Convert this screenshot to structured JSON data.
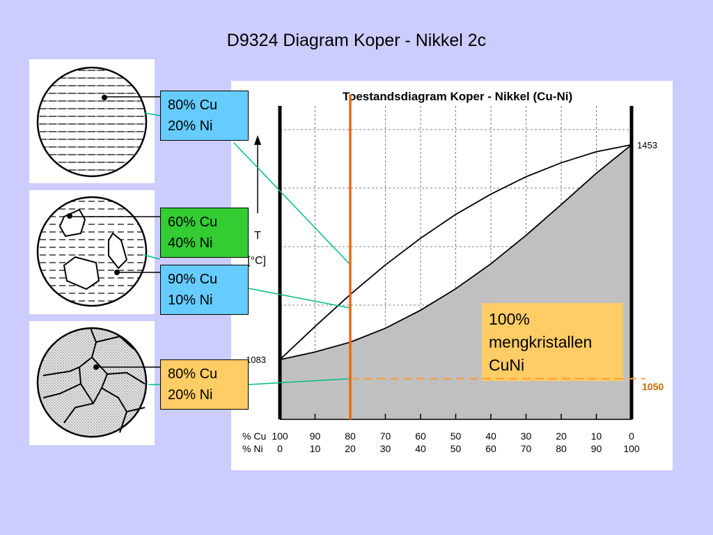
{
  "slide": {
    "title": "D9324 Diagram Koper  - Nikkel 2c"
  },
  "chart_data": {
    "type": "phase-diagram",
    "title": "Toestandsdiagram Koper - Nikkel (Cu-Ni)",
    "ylabel_symbol": "T",
    "ylabel_unit": "[°C]",
    "x_row_labels": [
      "% Cu",
      "% Ni"
    ],
    "cu_ticks": [
      "100",
      "90",
      "80",
      "70",
      "60",
      "50",
      "40",
      "30",
      "20",
      "10",
      "0"
    ],
    "ni_ticks": [
      "0",
      "10",
      "20",
      "30",
      "40",
      "50",
      "60",
      "70",
      "80",
      "90",
      "100"
    ],
    "ylim": [
      980,
      1520
    ],
    "melting_point_cu": 1083,
    "melting_point_ni": 1453,
    "melting_point_cu_label": "1083",
    "melting_point_ni_label": "1453",
    "liquidus": [
      [
        0,
        1083
      ],
      [
        10,
        1140
      ],
      [
        20,
        1195
      ],
      [
        30,
        1246
      ],
      [
        40,
        1292
      ],
      [
        50,
        1333
      ],
      [
        60,
        1368
      ],
      [
        70,
        1398
      ],
      [
        80,
        1422
      ],
      [
        90,
        1441
      ],
      [
        100,
        1453
      ]
    ],
    "solidus": [
      [
        0,
        1083
      ],
      [
        10,
        1096
      ],
      [
        20,
        1113
      ],
      [
        30,
        1137
      ],
      [
        40,
        1168
      ],
      [
        50,
        1205
      ],
      [
        60,
        1248
      ],
      [
        70,
        1297
      ],
      [
        80,
        1350
      ],
      [
        90,
        1404
      ],
      [
        100,
        1453
      ]
    ],
    "composition_line_ni": 20,
    "reference_temperature": 1050,
    "reference_label": "1050",
    "grid": true,
    "colors": {
      "solid_region": "#c0c0c0",
      "composition_line": "#ee6611",
      "reference_line": "#ff9933",
      "connector": "#00bb88"
    }
  },
  "labels": {
    "tag1": {
      "line1": "80% Cu",
      "line2": "20% Ni"
    },
    "tag2": {
      "line1": "60% Cu",
      "line2": "40% Ni"
    },
    "tag3": {
      "line1": "90% Cu",
      "line2": "10% Ni"
    },
    "tag4": {
      "line1": "80% Cu",
      "line2": "20% Ni"
    }
  },
  "callout": {
    "line1": "100%",
    "line2": "mengkristallen",
    "line3": "CuNi"
  },
  "colors": {
    "background": "#ccccff",
    "tag_blue": "#66ccff",
    "tag_green": "#33cc33",
    "tag_orange": "#ffcc66"
  }
}
